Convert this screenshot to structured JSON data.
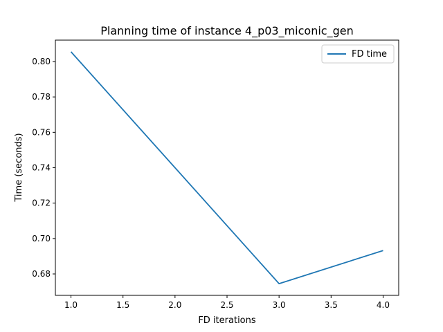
{
  "chart_data": {
    "type": "line",
    "title": "Planning time of instance 4_p03_miconic_gen",
    "xlabel": "FD iterations",
    "ylabel": "Time (seconds)",
    "x": [
      1.0,
      3.0,
      4.0
    ],
    "series": [
      {
        "name": "FD time",
        "values": [
          0.8055,
          0.6745,
          0.6932
        ],
        "color": "#1f77b4"
      }
    ],
    "xlim": [
      0.85,
      4.15
    ],
    "ylim": [
      0.6679,
      0.8121
    ],
    "xticks": [
      1.0,
      1.5,
      2.0,
      2.5,
      3.0,
      3.5,
      4.0
    ],
    "xtick_labels": [
      "1.0",
      "1.5",
      "2.0",
      "2.5",
      "3.0",
      "3.5",
      "4.0"
    ],
    "yticks": [
      0.68,
      0.7,
      0.72,
      0.74,
      0.76,
      0.78,
      0.8
    ],
    "ytick_labels": [
      "0.68",
      "0.70",
      "0.72",
      "0.74",
      "0.76",
      "0.78",
      "0.80"
    ],
    "grid": false,
    "legend_position": "top-right"
  }
}
